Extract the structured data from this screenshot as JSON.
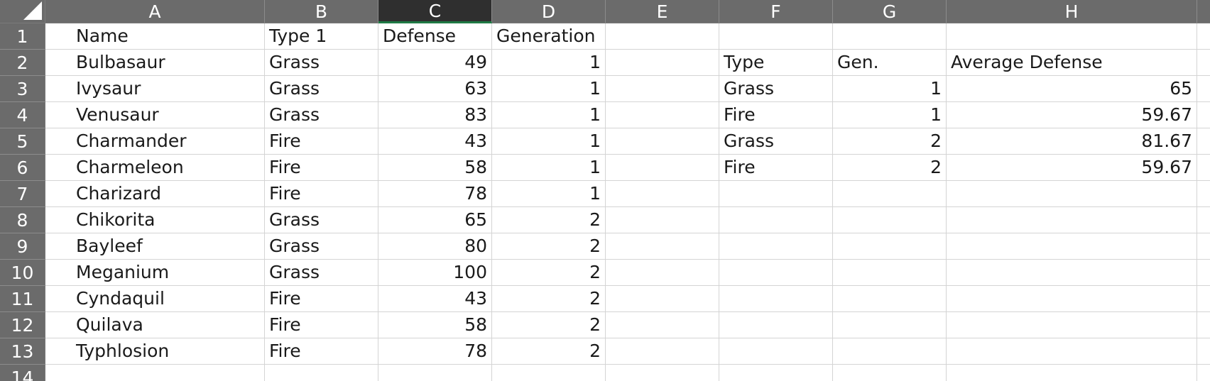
{
  "columns": [
    "A",
    "B",
    "C",
    "D",
    "E",
    "F",
    "G",
    "H",
    ""
  ],
  "selected_column": "C",
  "rows": [
    "1",
    "2",
    "3",
    "4",
    "5",
    "6",
    "7",
    "8",
    "9",
    "10",
    "11",
    "12",
    "13",
    "14"
  ],
  "cells": {
    "A1": "Name",
    "B1": "Type 1",
    "C1": "Defense",
    "D1": "Generation",
    "A2": "Bulbasaur",
    "B2": "Grass",
    "C2": "49",
    "D2": "1",
    "A3": "Ivysaur",
    "B3": "Grass",
    "C3": "63",
    "D3": "1",
    "A4": "Venusaur",
    "B4": "Grass",
    "C4": "83",
    "D4": "1",
    "A5": "Charmander",
    "B5": "Fire",
    "C5": "43",
    "D5": "1",
    "A6": "Charmeleon",
    "B6": "Fire",
    "C6": "58",
    "D6": "1",
    "A7": "Charizard",
    "B7": "Fire",
    "C7": "78",
    "D7": "1",
    "A8": "Chikorita",
    "B8": "Grass",
    "C8": "65",
    "D8": "2",
    "A9": "Bayleef",
    "B9": "Grass",
    "C9": "80",
    "D9": "2",
    "A10": "Meganium",
    "B10": "Grass",
    "C10": "100",
    "D10": "2",
    "A11": "Cyndaquil",
    "B11": "Fire",
    "C11": "43",
    "D11": "2",
    "A12": "Quilava",
    "B12": "Fire",
    "C12": "58",
    "D12": "2",
    "A13": "Typhlosion",
    "B13": "Fire",
    "C13": "78",
    "D13": "2",
    "F2": "Type",
    "G2": "Gen.",
    "H2": "Average Defense",
    "F3": "Grass",
    "G3": "1",
    "H3": "65",
    "F4": "Fire",
    "G4": "1",
    "H4": "59.67",
    "F5": "Grass",
    "G5": "2",
    "H5": "81.67",
    "F6": "Fire",
    "G6": "2",
    "H6": "59.67"
  },
  "colors": {
    "header_bg": "#6b6b6b",
    "selected_header_bg": "#2f2f2f",
    "selection_accent": "#1f7a45",
    "gridline": "#d4d4d4"
  }
}
